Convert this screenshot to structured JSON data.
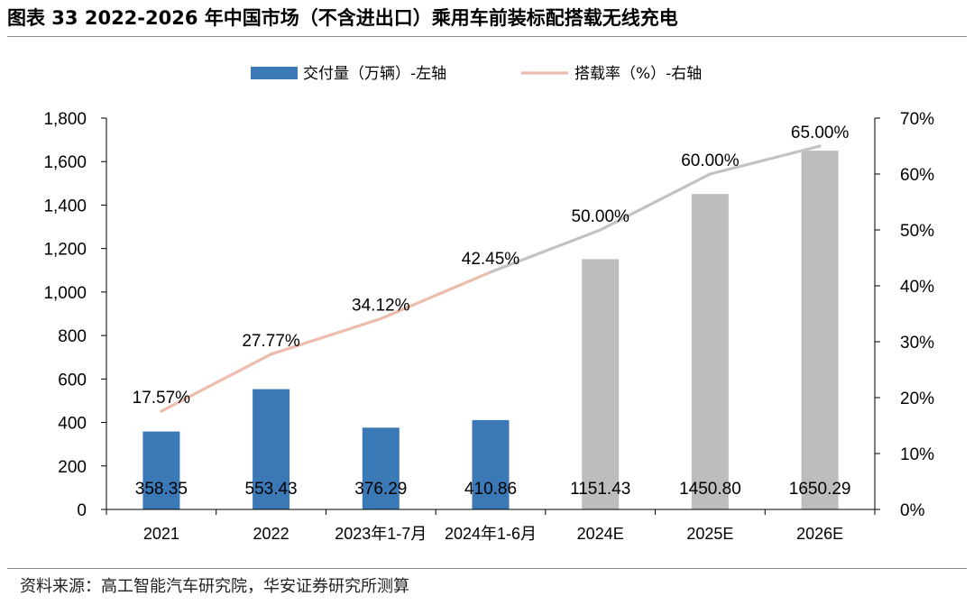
{
  "title": "图表 33 2022-2026 年中国市场（不含进出口）乘用车前装标配搭载无线充电",
  "source": "资料来源：高工智能汽车研究院，华安证券研究所测算",
  "colors": {
    "bar_actual": "#3a78b6",
    "bar_forecast": "#bdbdbd",
    "line_actual": "#ecbcac",
    "line_forecast": "#c2c2c2",
    "axis": "#000000"
  },
  "chart_data": {
    "type": "bar",
    "categories": [
      "2021",
      "2022",
      "2023年1-7月",
      "2024年1-6月",
      "2024E",
      "2025E",
      "2026E"
    ],
    "forecast_from_index": 4,
    "series": [
      {
        "name": "交付量（万辆）-左轴",
        "axis": "left",
        "type": "bar",
        "values": [
          358.35,
          553.43,
          376.29,
          410.86,
          1151.43,
          1450.8,
          1650.29
        ],
        "labels": [
          "358.35",
          "553.43",
          "376.29",
          "410.86",
          "1151.43",
          "1450.80",
          "1650.29"
        ]
      },
      {
        "name": "搭载率（%）-右轴",
        "axis": "right",
        "type": "line",
        "values": [
          17.57,
          27.77,
          34.12,
          42.45,
          50.0,
          60.0,
          65.0
        ],
        "labels": [
          "17.57%",
          "27.77%",
          "34.12%",
          "42.45%",
          "50.00%",
          "60.00%",
          "65.00%"
        ]
      }
    ],
    "y_left": {
      "range": [
        0,
        1800
      ],
      "ticks": [
        0,
        200,
        400,
        600,
        800,
        1000,
        1200,
        1400,
        1600,
        1800
      ],
      "tick_labels": [
        "0",
        "200",
        "400",
        "600",
        "800",
        "1,000",
        "1,200",
        "1,400",
        "1,600",
        "1,800"
      ]
    },
    "y_right": {
      "range": [
        0,
        70
      ],
      "ticks": [
        0,
        10,
        20,
        30,
        40,
        50,
        60,
        70
      ],
      "tick_labels": [
        "0%",
        "10%",
        "20%",
        "30%",
        "40%",
        "50%",
        "60%",
        "70%"
      ]
    },
    "legend_position": "top",
    "grid": false
  }
}
